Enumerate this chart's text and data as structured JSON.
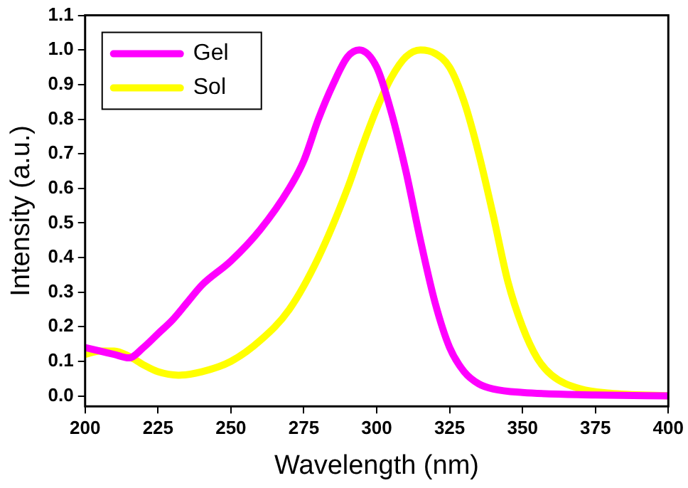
{
  "chart_data": {
    "type": "line",
    "xlabel": "Wavelength (nm)",
    "ylabel": "Intensity (a.u.)",
    "xlim": [
      200,
      400
    ],
    "xticks": [
      200,
      225,
      250,
      275,
      300,
      325,
      350,
      375,
      400
    ],
    "ylim": [
      -0.03,
      1.1
    ],
    "yticks": [
      {
        "value": 0,
        "label": "0.0"
      },
      {
        "value": 0.1,
        "label": "0.1"
      },
      {
        "value": 0.2,
        "label": "0.2"
      },
      {
        "value": 0.3,
        "label": "0.3"
      },
      {
        "value": 0.4,
        "label": "0.4"
      },
      {
        "value": 0.5,
        "label": "0.5"
      },
      {
        "value": 0.6,
        "label": "0.6"
      },
      {
        "value": 0.7,
        "label": "0.7"
      },
      {
        "value": 0.8,
        "label": "0.8"
      },
      {
        "value": 0.9,
        "label": "0.9"
      },
      {
        "value": 1,
        "label": "1.0"
      },
      {
        "value": 1.1,
        "label": "1.1"
      }
    ],
    "legend": "top left",
    "grid": false,
    "marker": "none",
    "line_style": "solid",
    "series": [
      {
        "name": "Gel",
        "color": "#ff00ff",
        "x": [
          200,
          205,
          210,
          215,
          220,
          225,
          230,
          235,
          240,
          250,
          260,
          270,
          275,
          280,
          285,
          290,
          294,
          300,
          305,
          310,
          315,
          320,
          325,
          330,
          335,
          340,
          350,
          375,
          400
        ],
        "values": [
          0.14,
          0.13,
          0.12,
          0.11,
          0.14,
          0.18,
          0.22,
          0.27,
          0.32,
          0.39,
          0.48,
          0.6,
          0.68,
          0.8,
          0.9,
          0.98,
          1.0,
          0.95,
          0.82,
          0.65,
          0.45,
          0.27,
          0.14,
          0.07,
          0.035,
          0.02,
          0.01,
          0.003,
          0.0
        ]
      },
      {
        "name": "Sol",
        "color": "#ffff00",
        "x": [
          200,
          205,
          210,
          215,
          220,
          225,
          232,
          240,
          250,
          260,
          270,
          280,
          290,
          295,
          300,
          305,
          310,
          315,
          320,
          325,
          330,
          335,
          340,
          345,
          350,
          355,
          360,
          370,
          380,
          400
        ],
        "values": [
          0.12,
          0.13,
          0.13,
          0.115,
          0.09,
          0.07,
          0.06,
          0.07,
          0.1,
          0.16,
          0.25,
          0.4,
          0.6,
          0.72,
          0.83,
          0.92,
          0.98,
          1.0,
          0.99,
          0.95,
          0.85,
          0.7,
          0.52,
          0.33,
          0.2,
          0.11,
          0.06,
          0.02,
          0.008,
          0.0
        ]
      }
    ]
  }
}
